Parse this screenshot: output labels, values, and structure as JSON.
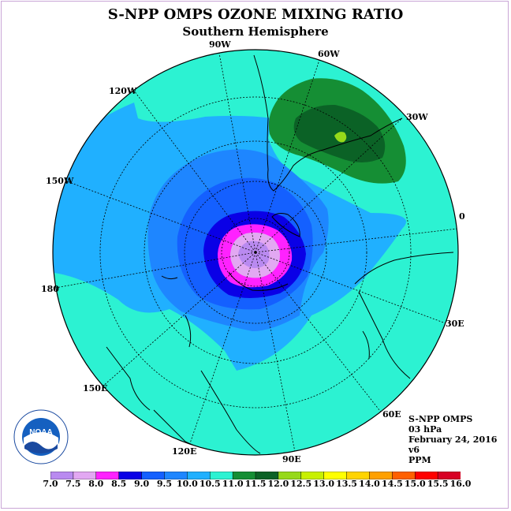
{
  "title": "S-NPP OMPS OZONE MIXING RATIO",
  "subtitle": "Southern Hemisphere",
  "longitude_labels": [
    "90W",
    "60W",
    "30W",
    "0",
    "30E",
    "60E",
    "90E",
    "120E",
    "150E",
    "180",
    "150W",
    "120W"
  ],
  "info": {
    "instrument": "S-NPP OMPS",
    "level": "03 hPa",
    "date": "February 24, 2016",
    "version": "v6",
    "units": "PPM"
  },
  "logo": {
    "text": "NOAA",
    "ring_text": "NATIONAL OCEANIC AND ATMOSPHERIC ADMINISTRATION · U.S. DEPARTMENT OF COMMERCE"
  },
  "colorbar": {
    "ticks": [
      "7.0",
      "7.5",
      "8.0",
      "8.5",
      "9.0",
      "9.5",
      "10.0",
      "10.5",
      "11.0",
      "11.5",
      "12.0",
      "12.5",
      "13.0",
      "13.5",
      "14.0",
      "14.5",
      "15.0",
      "15.5",
      "16.0"
    ],
    "colors": [
      "#b98af0",
      "#e2a8f2",
      "#ff22ff",
      "#0a00e6",
      "#1460ff",
      "#1e86ff",
      "#20b0ff",
      "#2cf2d2",
      "#158e34",
      "#0b6226",
      "#96d91a",
      "#c8f000",
      "#ffff00",
      "#ffd400",
      "#ffa000",
      "#ff6000",
      "#ff0000",
      "#d80024",
      "#8b5a3c"
    ]
  },
  "chart_data": {
    "type": "heatmap",
    "projection": "polar stereographic, south pole centered",
    "field": "ozone mixing ratio",
    "units": "PPM",
    "pressure_level_hPa": 3,
    "date": "February 24, 2016",
    "value_range": [
      7.0,
      16.0
    ],
    "contour_interval": 0.5,
    "observed_ranges": {
      "south_pole_center": "7.0–8.0 (7.0-7.5 innermost)",
      "inner_ring": "8.0–9.0",
      "mid_latitudes": "9.0–10.5",
      "outer_belt": "10.5–11.0",
      "south_america_maximum": "11.0–12.5 (peak 12.0-12.5)"
    }
  }
}
